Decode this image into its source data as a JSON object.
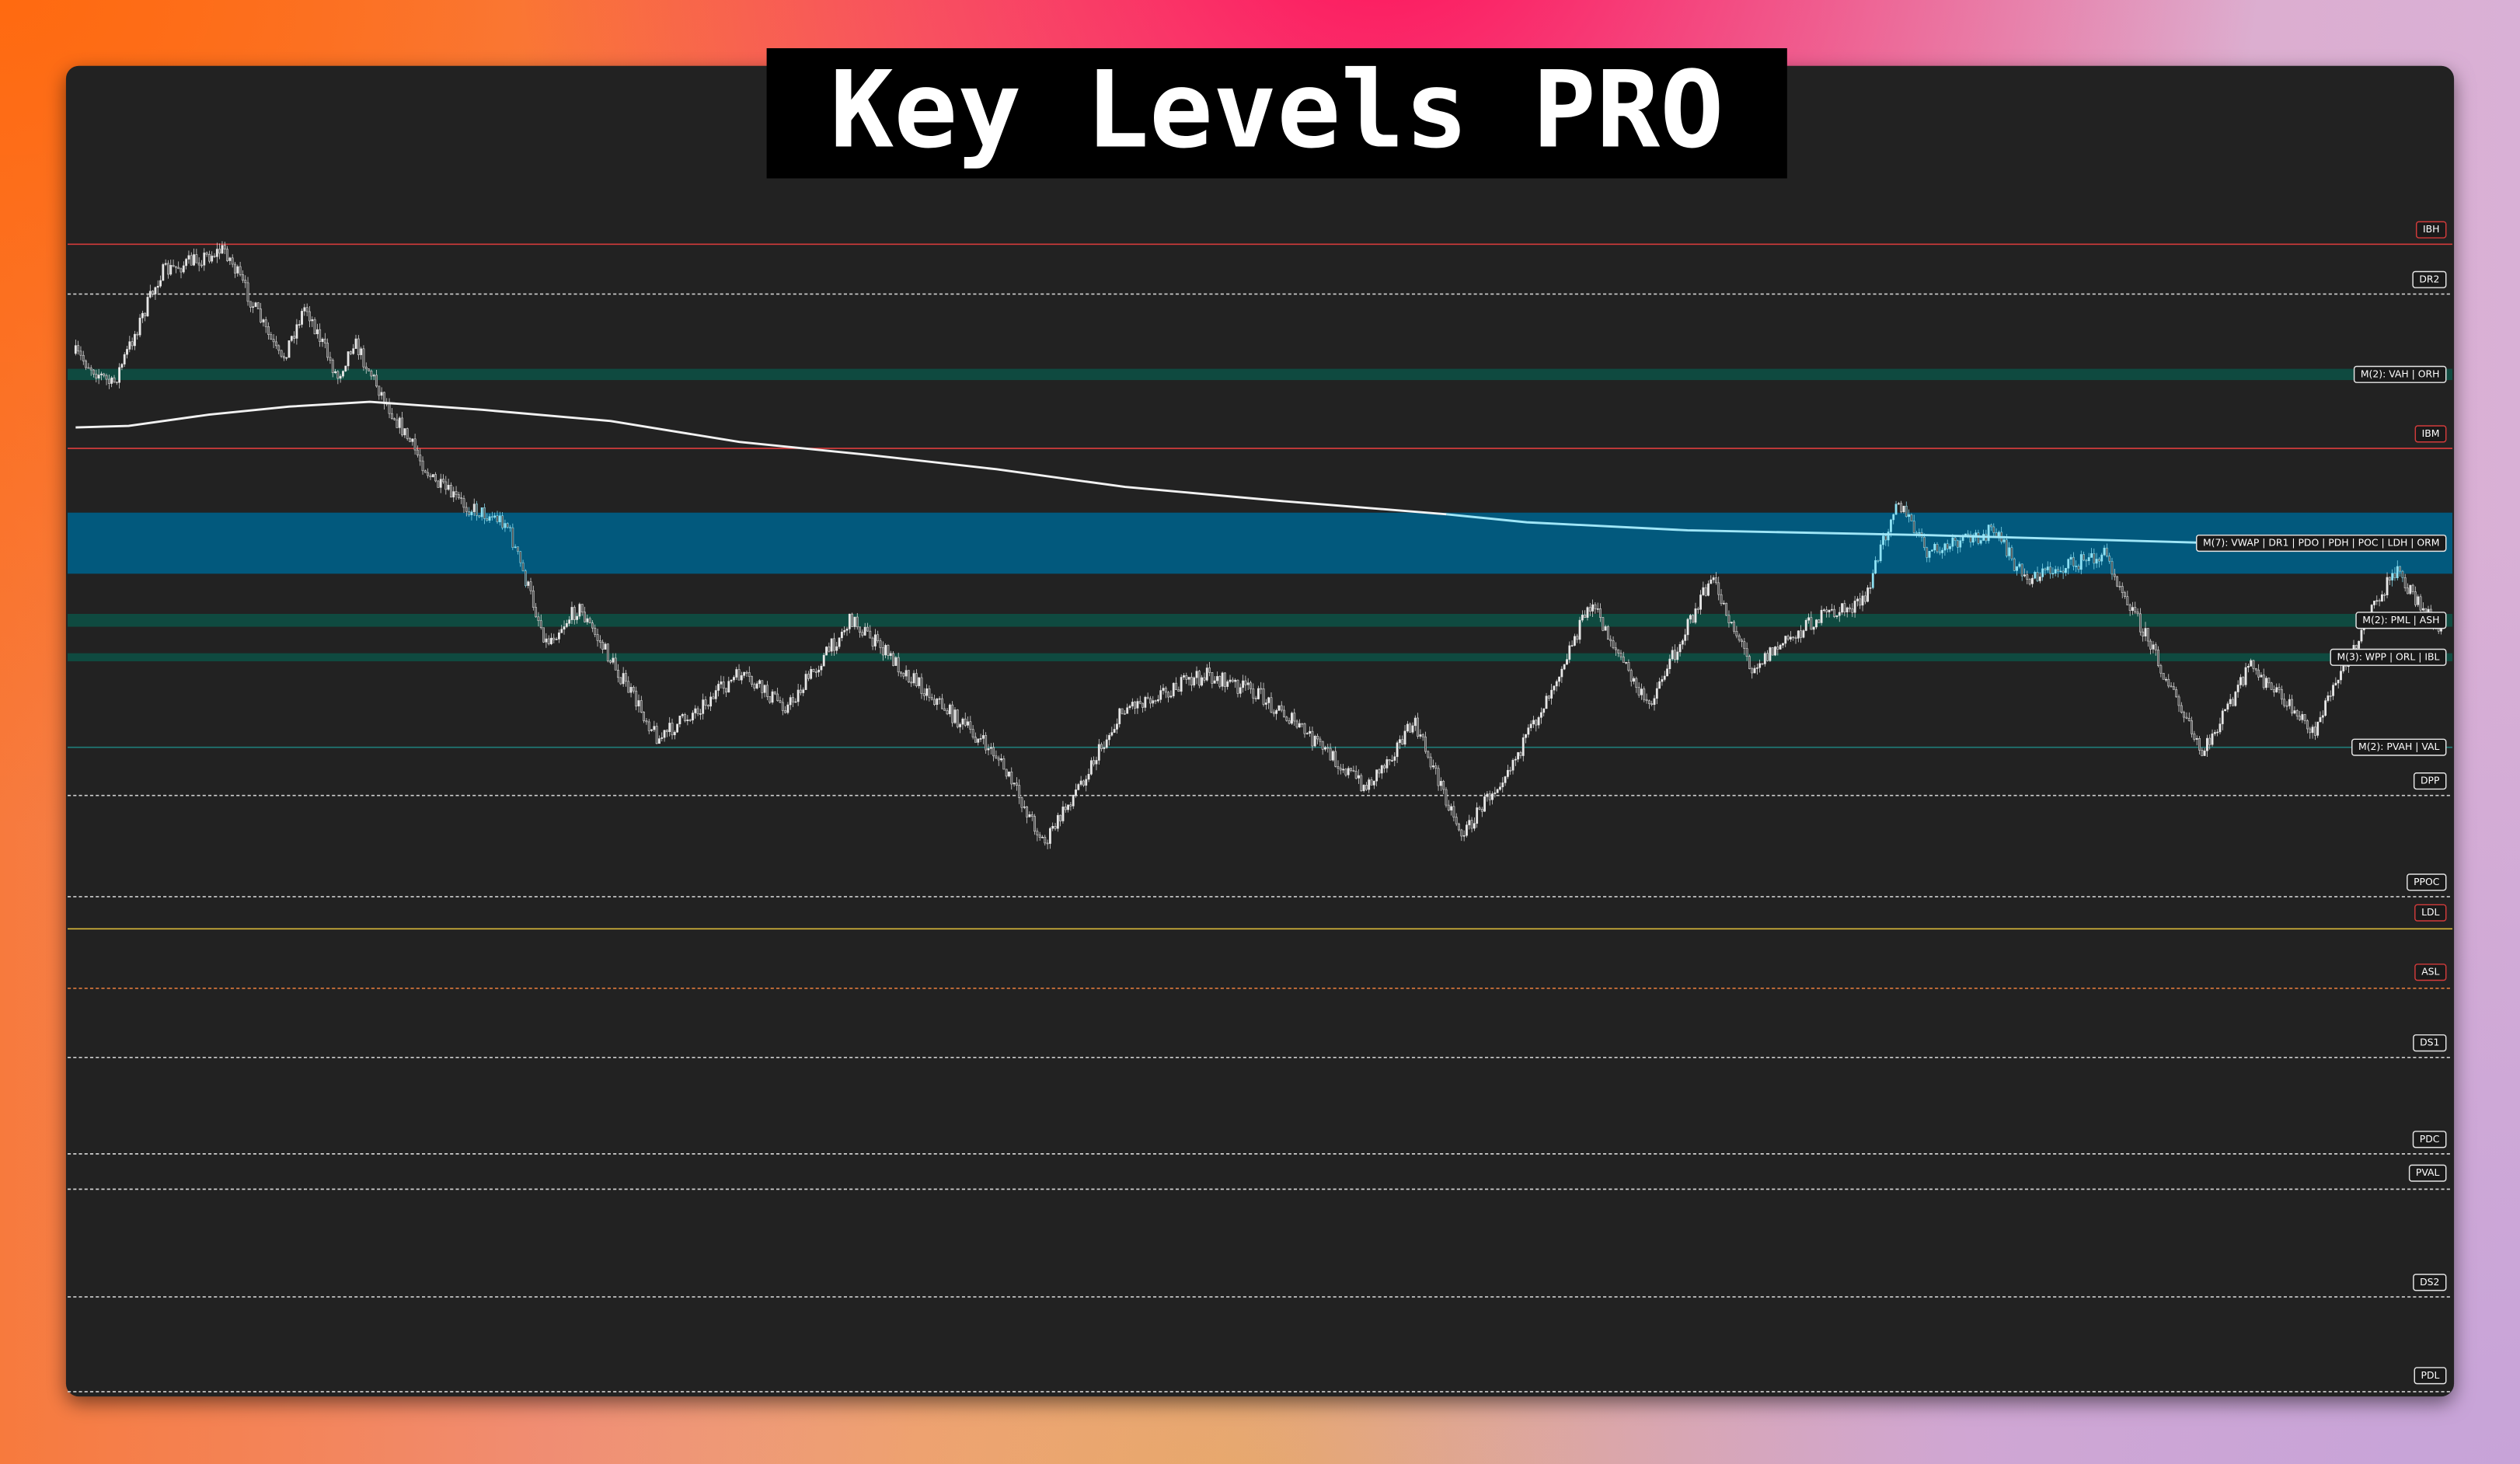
{
  "title": "Key Levels PRO",
  "levels": [
    {
      "label": "IBH"
    },
    {
      "label": "DR2"
    },
    {
      "label": "M(2): VAH | ORH"
    },
    {
      "label": "IBM"
    },
    {
      "label": "M(7): VWAP | DR1 | PDO | PDH | POC | LDH | ORM"
    },
    {
      "label": "M(2): PML | ASH"
    },
    {
      "label": "M(3): WPP | ORL | IBL"
    },
    {
      "label": "M(2): PVAH | VAL"
    },
    {
      "label": "DPP"
    },
    {
      "label": "PPOC"
    },
    {
      "label": "LDL"
    },
    {
      "label": "ASL"
    },
    {
      "label": "DS1"
    },
    {
      "label": "PDC"
    },
    {
      "label": "PVAL"
    },
    {
      "label": "DS2"
    },
    {
      "label": "PDL"
    }
  ]
}
